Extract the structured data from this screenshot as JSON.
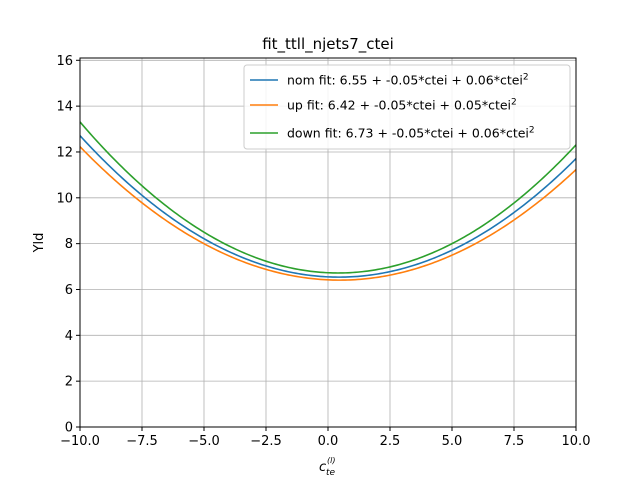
{
  "chart_data": {
    "type": "line",
    "title": "fit_ttll_njets7_ctei",
    "ylabel": "Yld",
    "xlabel_main": "c",
    "xlabel_sub": "te",
    "xlabel_sup": "(l)",
    "xlim": [
      -10,
      10
    ],
    "ylim": [
      0,
      16.1
    ],
    "grid": true,
    "legend_position": "top-right",
    "x_ticks": [
      -10,
      -7.5,
      -5,
      -2.5,
      0,
      2.5,
      5,
      7.5,
      10
    ],
    "x_tick_labels": [
      "−10.0",
      "−7.5",
      "−5.0",
      "−2.5",
      "0.0",
      "2.5",
      "5.0",
      "7.5",
      "10.0"
    ],
    "y_ticks": [
      0,
      2,
      4,
      6,
      8,
      10,
      12,
      14,
      16
    ],
    "y_tick_labels": [
      "0",
      "2",
      "4",
      "6",
      "8",
      "10",
      "12",
      "14",
      "16"
    ],
    "series": [
      {
        "name": "nom fit: 6.55 + -0.05*ctei + 0.06*ctei",
        "name_sup": "2",
        "color": "#1f77b4",
        "coefficients": [
          6.55,
          -0.05,
          0.0566
        ]
      },
      {
        "name": "up fit: 6.42 + -0.05*ctei + 0.05*ctei",
        "name_sup": "2",
        "color": "#ff7f0e",
        "coefficients": [
          6.42,
          -0.05,
          0.0531
        ]
      },
      {
        "name": "down fit: 6.73 + -0.05*ctei + 0.06*ctei",
        "name_sup": "2",
        "color": "#2ca02c",
        "coefficients": [
          6.73,
          -0.05,
          0.0608
        ]
      }
    ]
  }
}
